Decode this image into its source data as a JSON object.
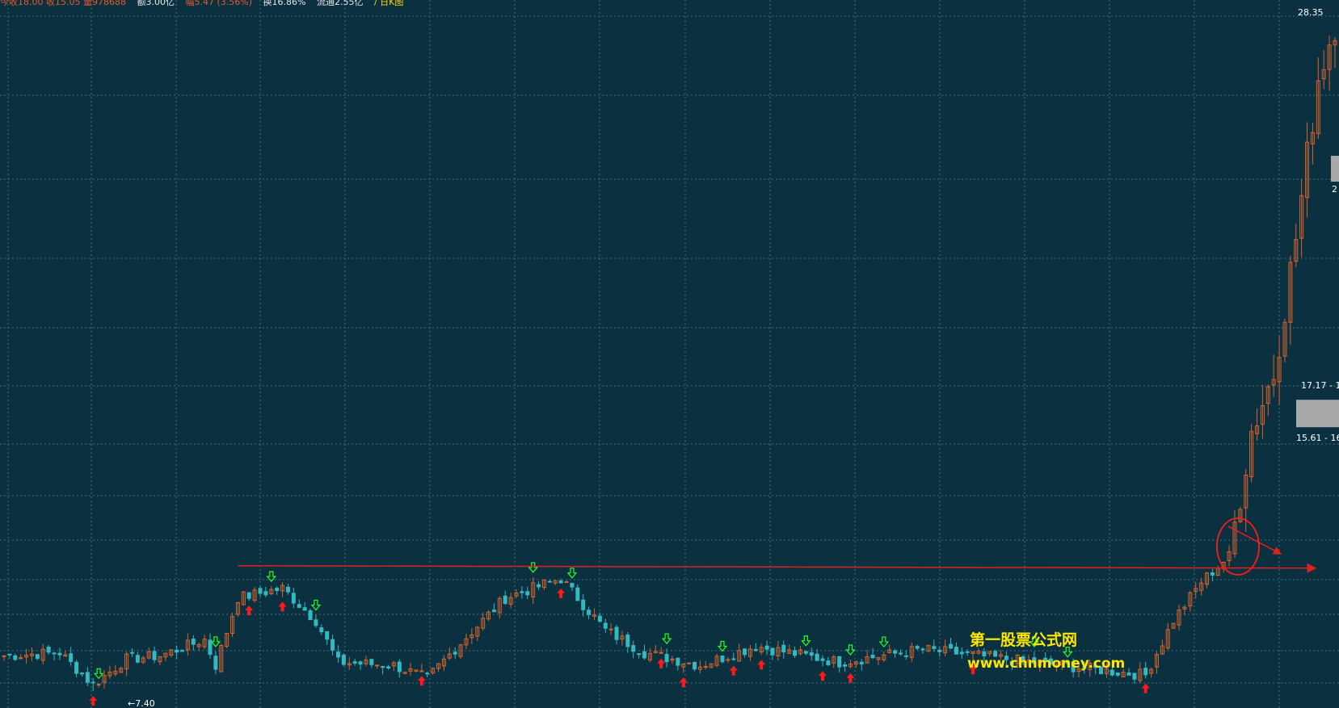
{
  "top_info": {
    "segments": [
      {
        "text": "今收18.00 收15.05 量978688",
        "color": "red"
      },
      {
        "text": "额3.00亿",
        "color": "white"
      },
      {
        "text": "幅5.47 (3.56%)",
        "color": "red"
      },
      {
        "text": "换16.86%",
        "color": "white"
      },
      {
        "text": "流通2.55亿",
        "color": "white"
      },
      {
        "text": "/ 日K图",
        "color": "yellow"
      }
    ]
  },
  "price_labels": {
    "high": "28.35",
    "low": "←7.40",
    "box_upper": "17.17 - 1",
    "box_lower": "15.61 - 16",
    "right_edge_mark": "2"
  },
  "watermark": {
    "title": "第一股票公式网",
    "url": "www.chnmoney.com"
  },
  "colors": {
    "background": "#0b3140",
    "grid": "#3f6f80",
    "candle_up": "#d9622b",
    "candle_down": "#35b8bf",
    "resistance_line": "#e0201c",
    "buy_arrow": "#ff1a1a",
    "sell_arrow": "#22ff22",
    "highlight_circle": "#ff1a1a",
    "price_box": "#a9a9a9"
  },
  "chart_data": {
    "type": "candlestick",
    "ylim": [
      7.0,
      28.6
    ],
    "price_levels": {
      "high": 28.35,
      "low": 7.4,
      "resistance": 11.3,
      "box_upper_low": 17.17,
      "box_lower_low": 15.61
    },
    "buy_signal_bars": [
      16,
      44,
      50,
      75,
      100,
      118,
      122,
      131,
      136,
      147,
      152,
      174,
      205
    ],
    "sell_signal_bars": [
      17,
      38,
      48,
      56,
      95,
      102,
      119,
      129,
      144,
      152,
      158,
      185,
      191
    ],
    "annotations": [
      "arrow pointing to breakout candle",
      "circle around breakout candle",
      "horizontal resistance line with arrow"
    ]
  }
}
